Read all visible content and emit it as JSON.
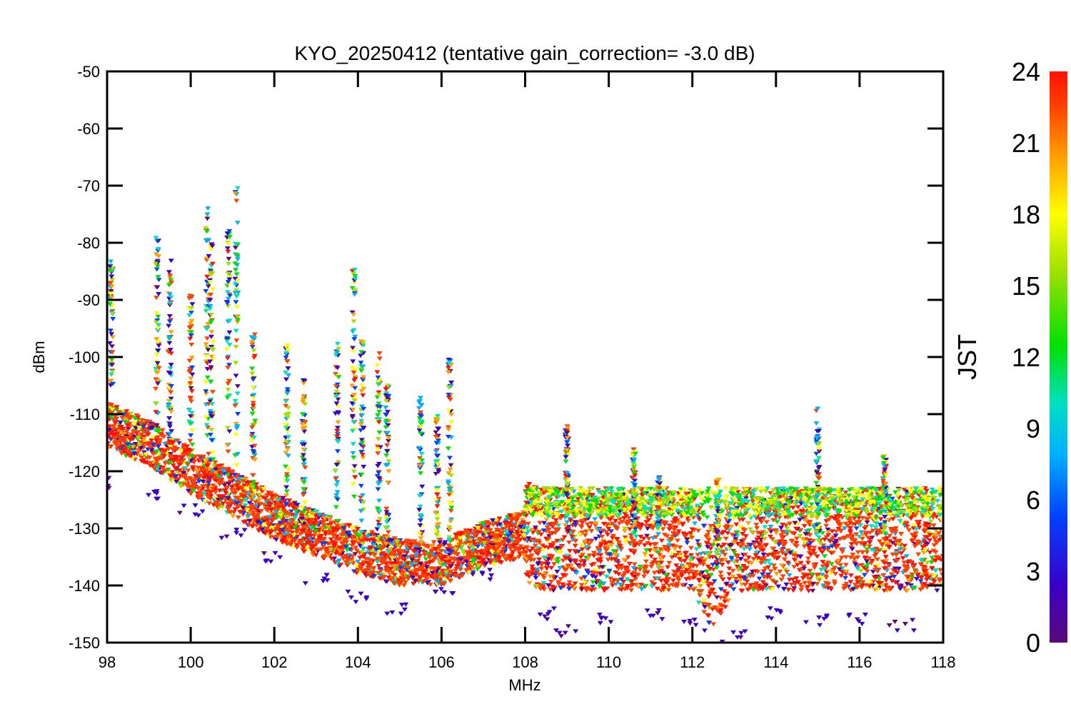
{
  "chart_data": {
    "type": "scatter",
    "title": "KYO_20250412 (tentative gain_correction= -3.0 dB)",
    "xlabel": "MHz",
    "ylabel": "dBm",
    "xlim": [
      98,
      118
    ],
    "ylim": [
      -150,
      -50
    ],
    "x_ticks": [
      98,
      100,
      102,
      104,
      106,
      108,
      110,
      112,
      114,
      116,
      118
    ],
    "y_ticks": [
      -50,
      -60,
      -70,
      -80,
      -90,
      -100,
      -110,
      -120,
      -130,
      -140,
      -150
    ],
    "grid": false,
    "colorbar": {
      "label": "JST",
      "range": [
        0,
        24
      ],
      "ticks": [
        0,
        3,
        6,
        9,
        12,
        15,
        18,
        21,
        24
      ],
      "colormap": "rainbow",
      "colors": [
        "#5a0a78",
        "#3a00c8",
        "#0040ff",
        "#00b0ff",
        "#00e0c0",
        "#00e000",
        "#a0e000",
        "#ffff00",
        "#ffa000",
        "#ff4000",
        "#ff1000"
      ]
    },
    "series": [
      {
        "description": "noise floor envelope (mostly late-day samples)",
        "points": [
          [
            98.0,
            -112
          ],
          [
            99.0,
            -115
          ],
          [
            100.0,
            -120
          ],
          [
            101.0,
            -124
          ],
          [
            102.0,
            -128
          ],
          [
            103.0,
            -131
          ],
          [
            104.0,
            -134
          ],
          [
            105.0,
            -136
          ],
          [
            106.0,
            -136
          ],
          [
            107.0,
            -133
          ],
          [
            108.0,
            -131
          ],
          [
            108.5,
            -132
          ],
          [
            110.0,
            -132
          ],
          [
            112.0,
            -132
          ],
          [
            112.5,
            -139
          ],
          [
            113.0,
            -132
          ],
          [
            114.0,
            -132
          ],
          [
            116.0,
            -132
          ],
          [
            118.0,
            -132
          ]
        ]
      },
      {
        "description": "lowest early-morning samples",
        "points": [
          [
            98.0,
            -122
          ],
          [
            99.0,
            -124
          ],
          [
            100.0,
            -127
          ],
          [
            101.0,
            -131
          ],
          [
            102.0,
            -135
          ],
          [
            103.0,
            -139
          ],
          [
            104.0,
            -142
          ],
          [
            105.0,
            -144
          ],
          [
            106.0,
            -141
          ],
          [
            107.0,
            -138
          ],
          [
            108.5,
            -145
          ],
          [
            109.0,
            -148
          ],
          [
            110.0,
            -146
          ],
          [
            111.0,
            -145
          ],
          [
            112.0,
            -147
          ],
          [
            113.0,
            -149
          ],
          [
            114.0,
            -145
          ],
          [
            115.0,
            -146
          ],
          [
            116.0,
            -146
          ],
          [
            117.0,
            -147
          ]
        ]
      },
      {
        "description": "broadcast peaks (maximum values)",
        "points": [
          [
            98.1,
            -83
          ],
          [
            99.2,
            -79
          ],
          [
            99.5,
            -82
          ],
          [
            100.0,
            -89
          ],
          [
            100.4,
            -74
          ],
          [
            100.5,
            -80
          ],
          [
            100.9,
            -77
          ],
          [
            101.1,
            -70
          ],
          [
            101.5,
            -96
          ],
          [
            102.3,
            -98
          ],
          [
            102.7,
            -104
          ],
          [
            103.5,
            -97
          ],
          [
            103.9,
            -84
          ],
          [
            104.1,
            -97
          ],
          [
            104.5,
            -99
          ],
          [
            104.7,
            -105
          ],
          [
            105.5,
            -107
          ],
          [
            105.9,
            -110
          ],
          [
            106.2,
            -100
          ],
          [
            109.0,
            -112
          ],
          [
            110.6,
            -116
          ],
          [
            111.2,
            -121
          ],
          [
            112.6,
            -121
          ],
          [
            115.0,
            -109
          ],
          [
            116.6,
            -117
          ]
        ]
      }
    ]
  }
}
